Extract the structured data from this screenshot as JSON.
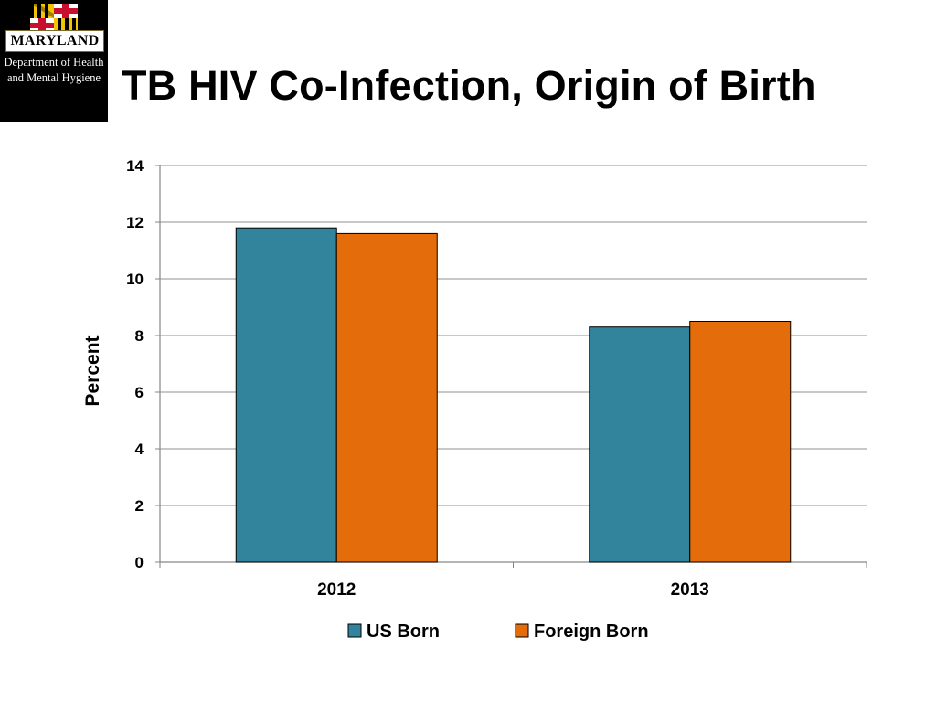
{
  "logo": {
    "banner": "MARYLAND",
    "line1": "Department of Health",
    "line2": "and Mental Hygiene"
  },
  "slide": {
    "title": "TB HIV Co-Infection, Origin of Birth"
  },
  "colors": {
    "us_born": "#31849b",
    "foreign_born": "#e46c0a",
    "gridline": "#a6a6a6",
    "axis": "#868686",
    "text": "#000000"
  },
  "chart_data": {
    "type": "bar",
    "title": "TB HIV Co-Infection, Origin of Birth",
    "xlabel": "",
    "ylabel": "Percent",
    "categories": [
      "2012",
      "2013"
    ],
    "series": [
      {
        "name": "US Born",
        "values": [
          11.8,
          8.3
        ]
      },
      {
        "name": "Foreign Born",
        "values": [
          11.6,
          8.5
        ]
      }
    ],
    "ylim": [
      0,
      14
    ],
    "yticks": [
      0,
      2,
      4,
      6,
      8,
      10,
      12,
      14
    ],
    "grid": true,
    "legend": "bottom"
  }
}
